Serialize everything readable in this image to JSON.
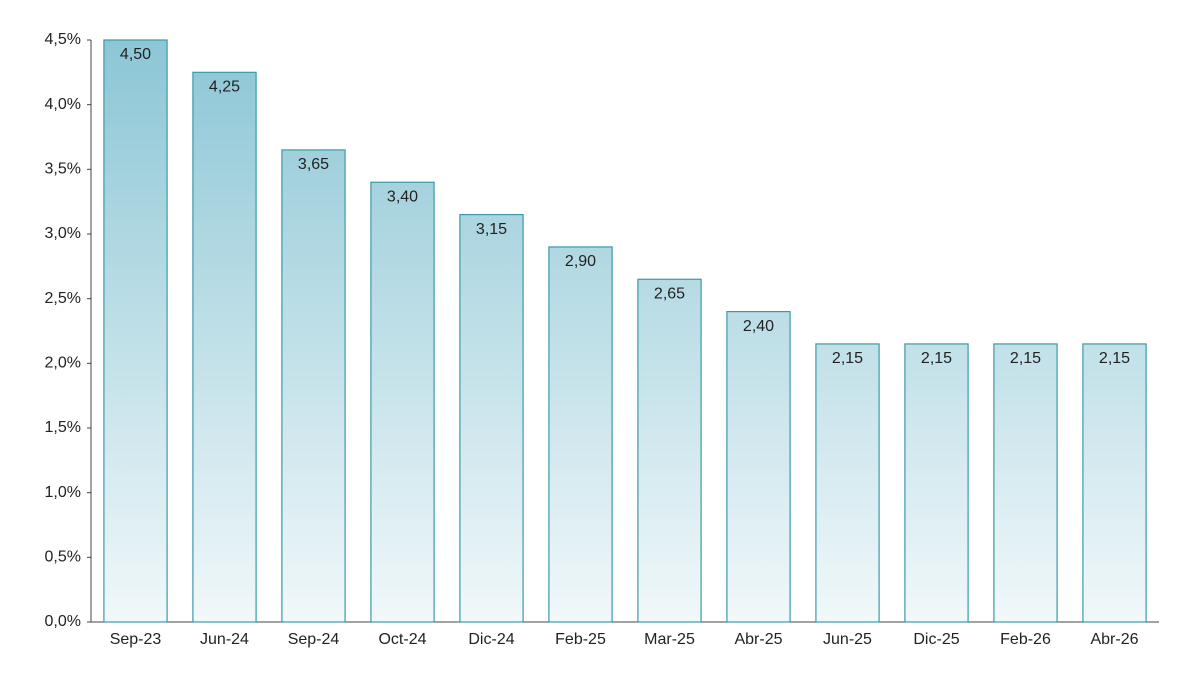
{
  "chart_data": {
    "type": "bar",
    "categories": [
      "Sep-23",
      "Jun-24",
      "Sep-24",
      "Oct-24",
      "Dic-24",
      "Feb-25",
      "Mar-25",
      "Abr-25",
      "Jun-25",
      "Dic-25",
      "Feb-26",
      "Abr-26"
    ],
    "values": [
      4.5,
      4.25,
      3.65,
      3.4,
      3.15,
      2.9,
      2.65,
      2.4,
      2.15,
      2.15,
      2.15,
      2.15
    ],
    "value_labels": [
      "4,50",
      "4,25",
      "3,65",
      "3,40",
      "3,15",
      "2,90",
      "2,65",
      "2,40",
      "2,15",
      "2,15",
      "2,15",
      "2,15"
    ],
    "color": "#3a9aaa",
    "ylim": [
      0,
      4.5
    ],
    "yticks": [
      {
        "value": 0,
        "label": "0,0%"
      },
      {
        "value": 0.5,
        "label": "0,5%"
      },
      {
        "value": 1,
        "label": "1,0%"
      },
      {
        "value": 1.5,
        "label": "1,5%"
      },
      {
        "value": 2,
        "label": "2,0%"
      },
      {
        "value": 2.5,
        "label": "2,5%"
      },
      {
        "value": 3,
        "label": "3,0%"
      },
      {
        "value": 3.5,
        "label": "3,5%"
      },
      {
        "value": 4,
        "label": "4,0%"
      },
      {
        "value": 4.5,
        "label": "4,5%"
      }
    ]
  }
}
